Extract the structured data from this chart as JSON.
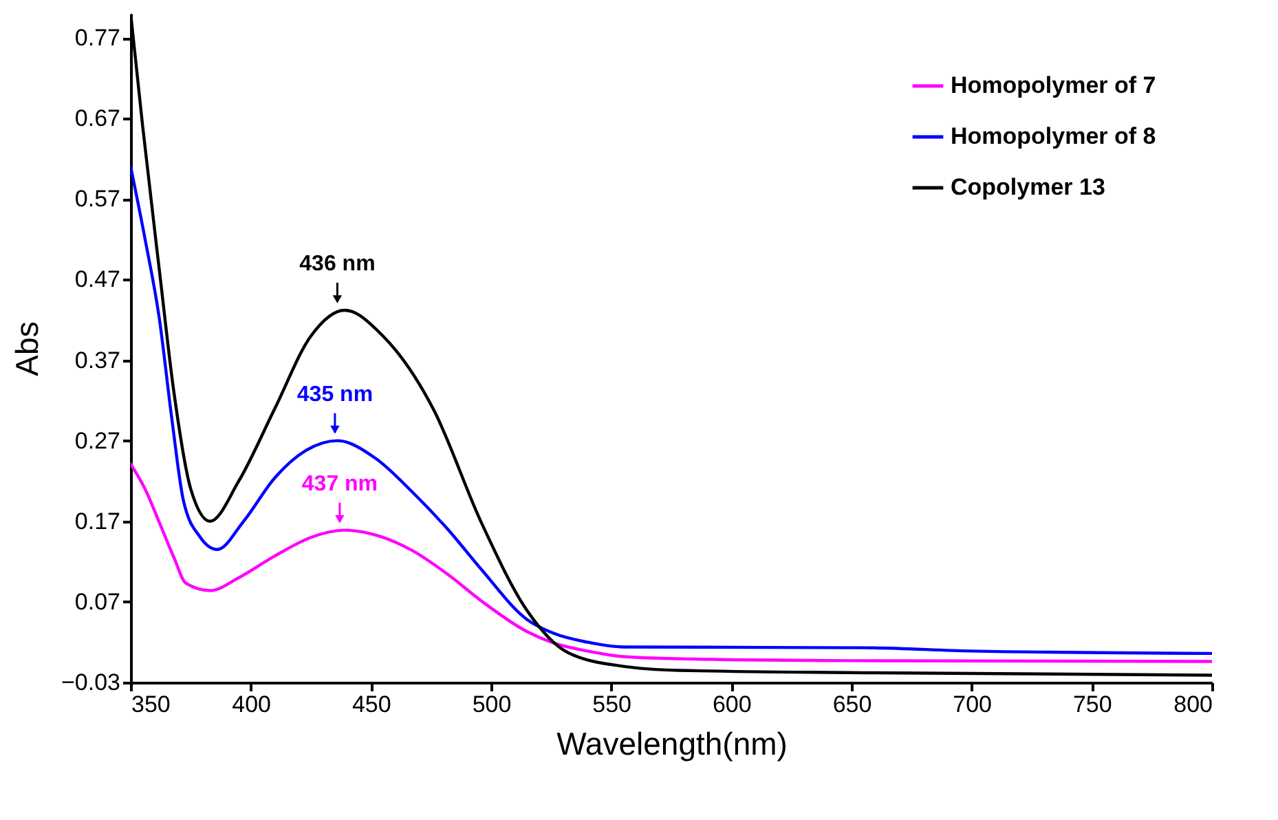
{
  "chart_data": {
    "type": "line",
    "xlabel": "Wavelength(nm)",
    "ylabel": "Abs",
    "xlim": [
      350,
      800
    ],
    "xticks": [
      350,
      400,
      450,
      500,
      550,
      600,
      650,
      700,
      750,
      800
    ],
    "ylim": [
      -0.03,
      0.8
    ],
    "yticks": [
      -0.03,
      0.07,
      0.17,
      0.27,
      0.37,
      0.47,
      0.57,
      0.67,
      0.77
    ],
    "grid": false,
    "legend": "top right",
    "line_style": "solid",
    "marker": "none",
    "series": [
      {
        "name": "Homopolymer of 7",
        "color": "#ff00ff",
        "x": [
          350,
          356,
          362,
          368,
          373,
          383,
          395,
          410,
          425,
          439,
          453,
          467,
          482,
          496,
          515,
          526,
          540,
          555,
          584,
          650,
          800
        ],
        "values": [
          0.241,
          0.21,
          0.168,
          0.125,
          0.093,
          0.084,
          0.1,
          0.127,
          0.15,
          0.159,
          0.152,
          0.134,
          0.104,
          0.071,
          0.033,
          0.019,
          0.009,
          0.002,
          -0.001,
          -0.003,
          -0.004
        ]
      },
      {
        "name": "Homopolymer of 8",
        "color": "#0000ff",
        "x": [
          350,
          356,
          362,
          367,
          372,
          379,
          386,
          397,
          410,
          423,
          436,
          452,
          467,
          482,
          496,
          515,
          526,
          540,
          555,
          656,
          700,
          800
        ],
        "values": [
          0.61,
          0.52,
          0.42,
          0.3,
          0.195,
          0.15,
          0.135,
          0.17,
          0.224,
          0.258,
          0.27,
          0.248,
          0.207,
          0.16,
          0.11,
          0.048,
          0.031,
          0.02,
          0.014,
          0.013,
          0.009,
          0.006
        ]
      },
      {
        "name": "Copolymer 13",
        "color": "#000000",
        "x": [
          350,
          355,
          362,
          368,
          375,
          383,
          395,
          410,
          425,
          439,
          455,
          476,
          496,
          515,
          532,
          555,
          578,
          655,
          800
        ],
        "values": [
          0.8,
          0.66,
          0.48,
          0.33,
          0.21,
          0.17,
          0.22,
          0.31,
          0.4,
          0.432,
          0.4,
          0.309,
          0.168,
          0.059,
          0.007,
          -0.01,
          -0.015,
          -0.018,
          -0.021
        ]
      }
    ],
    "annotations": [
      {
        "text": "437 nm",
        "x": 437,
        "y": 0.159
      },
      {
        "text": "435 nm",
        "x": 435,
        "y": 0.27
      },
      {
        "text": "436 nm",
        "x": 436,
        "y": 0.432
      }
    ]
  }
}
